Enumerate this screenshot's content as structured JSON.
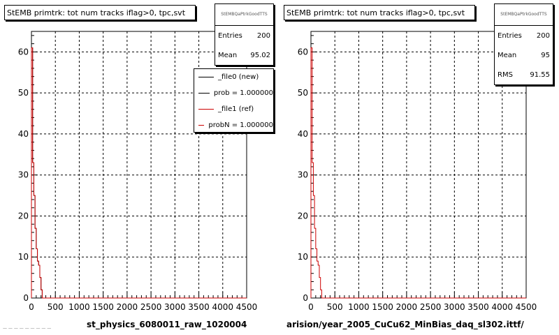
{
  "panels": [
    {
      "title": "StEMB primtrk: tot num tracks iflag>0, tpc,svt",
      "stats": {
        "name": "StEMBQaPtrkGoodTTS",
        "entries_label": "Entries",
        "entries": "200",
        "mean_label": "Mean",
        "mean": "95.02"
      },
      "legend": [
        {
          "label": "_file0 (new)",
          "color": "#000000"
        },
        {
          "label": "prob = 1.000000",
          "color": "#000000"
        },
        {
          "label": "_file1 (ref)",
          "color": "#cc0000"
        },
        {
          "label": "probN = 1.000000",
          "color": "#cc0000"
        }
      ],
      "xlabel": "st_physics_6080011_raw_1020004"
    },
    {
      "title": "StEMB primtrk: tot num tracks iflag>0, tpc,svt",
      "stats": {
        "name": "StEMBQaPtrkGoodTTS",
        "entries_label": "Entries",
        "entries": "200",
        "mean_label": "Mean",
        "mean": "95",
        "rms_label": "RMS",
        "rms": "91.55"
      },
      "xlabel": "arision/year_2005_CuCu62_MinBias_daq_sl302.ittf/"
    }
  ],
  "corner_text": "— — — — —  — — — —",
  "chart_data": [
    {
      "type": "histogram",
      "xlim": [
        0,
        4500
      ],
      "ylim": [
        0,
        65
      ],
      "xticks": [
        0,
        500,
        1000,
        1500,
        2000,
        2500,
        3000,
        3500,
        4000,
        4500
      ],
      "yticks": [
        0,
        10,
        20,
        30,
        40,
        50,
        60
      ],
      "grid": true,
      "bin_width": 25,
      "series": [
        {
          "name": "_file0 (new)",
          "color": "#000000",
          "values": [
            61,
            33,
            25,
            17,
            12,
            9,
            8,
            5,
            2,
            0
          ]
        },
        {
          "name": "_file1 (ref)",
          "color": "#cc0000",
          "values": [
            61,
            33,
            25,
            17,
            12,
            9,
            8,
            5,
            2,
            0
          ]
        }
      ]
    },
    {
      "type": "histogram",
      "xlim": [
        0,
        4500
      ],
      "ylim": [
        0,
        65
      ],
      "xticks": [
        0,
        500,
        1000,
        1500,
        2000,
        2500,
        3000,
        3500,
        4000,
        4500
      ],
      "yticks": [
        0,
        10,
        20,
        30,
        40,
        50,
        60
      ],
      "grid": true,
      "bin_width": 25,
      "series": [
        {
          "color": "#cc0000",
          "values": [
            61,
            33,
            25,
            17,
            12,
            9,
            8,
            5,
            2,
            0
          ]
        }
      ]
    }
  ]
}
